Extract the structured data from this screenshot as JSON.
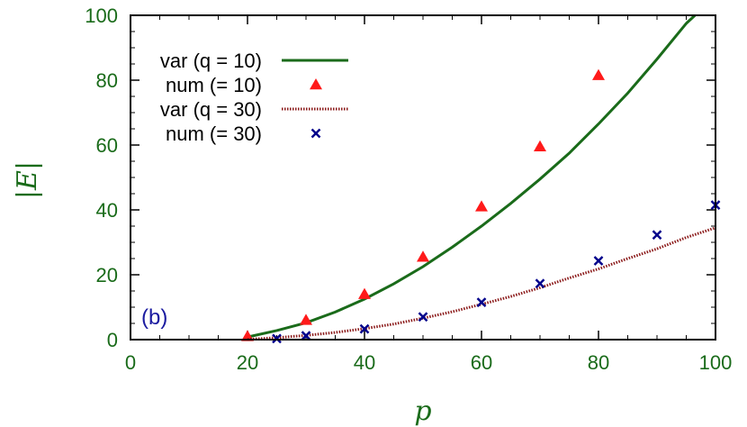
{
  "chart_data": {
    "type": "line",
    "panel_label": "(b)",
    "xlabel": "p",
    "ylabel": "|E|",
    "xlim": [
      0,
      100
    ],
    "ylim": [
      0,
      100
    ],
    "x_ticks": [
      0,
      20,
      40,
      60,
      80,
      100
    ],
    "y_ticks": [
      0,
      20,
      40,
      60,
      80,
      100
    ],
    "grid": false,
    "legend_position": "top-left",
    "colors": {
      "axis_text": "#1a6b1a",
      "frame": "#000000",
      "panel_label": "#1a1aa0"
    },
    "series": [
      {
        "name": "var (q = 10)",
        "kind": "line",
        "style": "solid",
        "color": "#1a6b1a",
        "x": [
          20,
          25,
          30,
          35,
          40,
          45,
          50,
          55,
          60,
          65,
          70,
          75,
          80,
          85,
          90,
          95,
          96.5
        ],
        "y": [
          0.8,
          2.8,
          5.2,
          8.5,
          12.5,
          17.2,
          22.5,
          28.5,
          35,
          42,
          49.5,
          57.5,
          66.5,
          76,
          86.5,
          97.5,
          100
        ]
      },
      {
        "name": "num (= 10)",
        "kind": "scatter",
        "marker": "triangle",
        "color": "#ff1a1a",
        "x": [
          20,
          30,
          40,
          50,
          60,
          70,
          80
        ],
        "y": [
          1,
          6,
          14,
          25.5,
          41,
          59.5,
          81.5
        ]
      },
      {
        "name": "var (q = 30)",
        "kind": "line",
        "style": "dotted",
        "color": "#8b1a1a",
        "x": [
          20,
          25,
          30,
          35,
          40,
          45,
          50,
          55,
          60,
          65,
          70,
          75,
          80,
          85,
          90,
          95,
          100
        ],
        "y": [
          0.1,
          0.6,
          1.3,
          2.2,
          3.4,
          4.8,
          6.6,
          8.6,
          10.9,
          13.3,
          16,
          19,
          21.8,
          25,
          28,
          31.5,
          34.5
        ]
      },
      {
        "name": "num (= 30)",
        "kind": "scatter",
        "marker": "cross",
        "color": "#00008b",
        "x": [
          25,
          30,
          40,
          50,
          60,
          70,
          80,
          90,
          100
        ],
        "y": [
          0.3,
          1.2,
          3.3,
          7,
          11.5,
          17.3,
          24.3,
          32.3,
          41.5
        ]
      }
    ]
  }
}
